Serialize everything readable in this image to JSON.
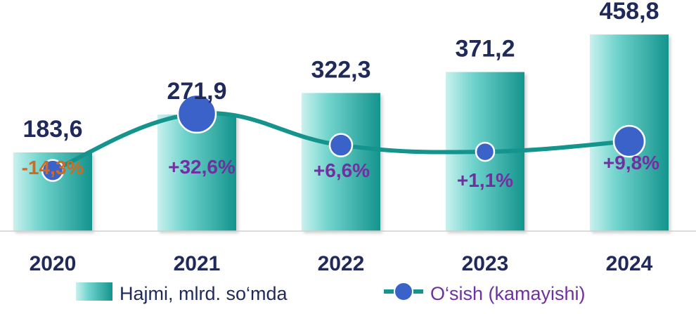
{
  "chart_data": {
    "type": "bar",
    "categories": [
      "2020",
      "2021",
      "2022",
      "2023",
      "2024"
    ],
    "series": [
      {
        "name": "Hajmi, mlrd. so‘mda",
        "type": "bar",
        "values": [
          183.6,
          271.9,
          322.3,
          371.2,
          458.8
        ],
        "labels": [
          "183,6",
          "271,9",
          "322,3",
          "371,2",
          "458,8"
        ],
        "color": "#2bb7ad"
      },
      {
        "name": "O‘sish (kamayishi)",
        "type": "line",
        "values": [
          -14.3,
          32.6,
          6.6,
          1.1,
          9.8
        ],
        "labels": [
          "-14,3%",
          "+32,6%",
          "+6,6%",
          "+1,1%",
          "+9,8%"
        ],
        "color": "#14948d",
        "marker_color": "#3a62c8"
      }
    ],
    "label_colors": {
      "negative": "#d2691e",
      "positive": "#7030a0",
      "value": "#1f2a5a",
      "legend_line": "#7030a0"
    },
    "ylim": [
      0,
      470
    ],
    "grid": false,
    "legend_position": "bottom"
  }
}
